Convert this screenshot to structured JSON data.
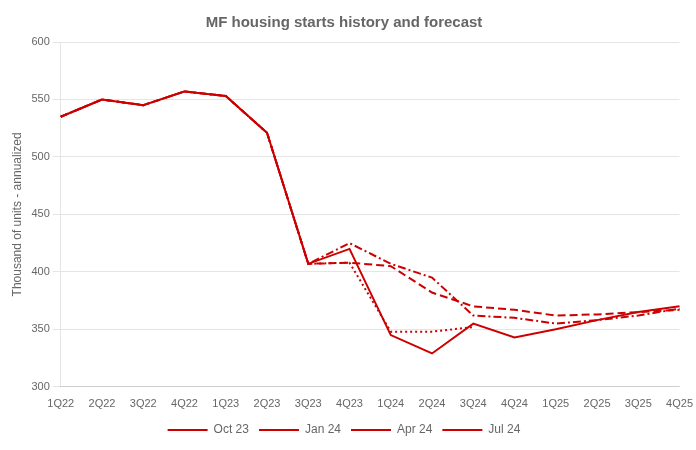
{
  "chart_data": {
    "type": "line",
    "title": "MF housing starts history and forecast",
    "ylabel": "Thousand of units - annualized",
    "categories": [
      "1Q22",
      "2Q22",
      "3Q22",
      "4Q22",
      "1Q23",
      "2Q23",
      "3Q23",
      "4Q23",
      "1Q24",
      "2Q24",
      "3Q24",
      "4Q24",
      "1Q25",
      "2Q25",
      "3Q25",
      "4Q25"
    ],
    "series": [
      {
        "name": "Oct 23",
        "color": "#cc0000",
        "line_style": "dotted",
        "values": [
          535,
          550,
          545,
          557,
          553,
          521,
          407,
          408,
          348,
          348,
          352,
          null,
          null,
          null,
          null,
          null
        ]
      },
      {
        "name": "Jan 24",
        "color": "#cc0000",
        "line_style": "dashed",
        "values": [
          535,
          550,
          545,
          557,
          553,
          521,
          407,
          408,
          405,
          382,
          370,
          367,
          362,
          363,
          365,
          367
        ]
      },
      {
        "name": "Apr 24",
        "color": "#cc0000",
        "line_style": "dashdot",
        "values": [
          535,
          550,
          545,
          557,
          553,
          521,
          407,
          425,
          407,
          395,
          362,
          360,
          355,
          358,
          362,
          368
        ]
      },
      {
        "name": "Jul 24",
        "color": "#cc0000",
        "line_style": "solid",
        "values": [
          535,
          550,
          545,
          557,
          553,
          521,
          407,
          420,
          345,
          329,
          355,
          343,
          350,
          358,
          365,
          370
        ]
      }
    ],
    "ylim": [
      300,
      600
    ],
    "yticks": [
      300,
      350,
      400,
      450,
      500,
      550,
      600
    ],
    "grid": "y",
    "legend": "bottom"
  }
}
